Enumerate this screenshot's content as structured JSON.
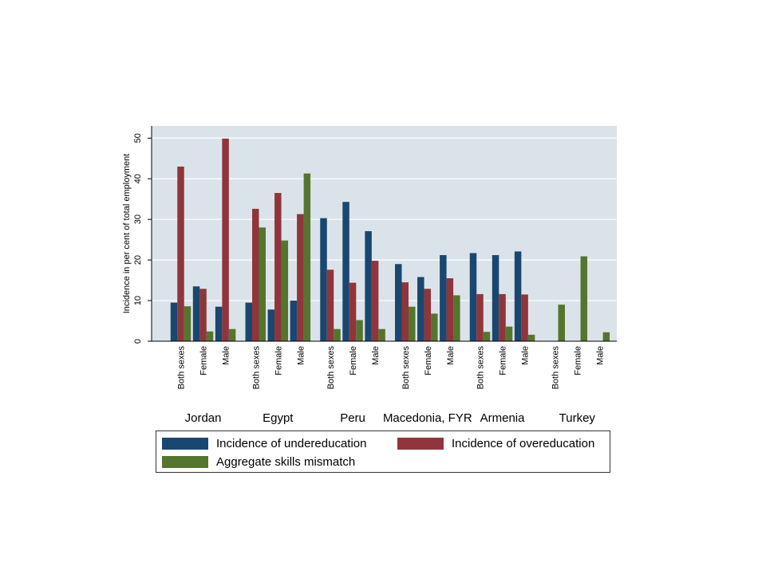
{
  "chart_data": {
    "type": "bar",
    "ylabel": "Incidence in per cent of total employment",
    "ylim": [
      0,
      53
    ],
    "yticks": [
      0,
      10,
      20,
      30,
      40,
      50
    ],
    "grid": true,
    "legend_position": "bottom",
    "groups": [
      {
        "name": "Jordan",
        "categories": [
          "Both sexes",
          "Female",
          "Male"
        ]
      },
      {
        "name": "Egypt",
        "categories": [
          "Both sexes",
          "Female",
          "Male"
        ]
      },
      {
        "name": "Peru",
        "categories": [
          "Both sexes",
          "Female",
          "Male"
        ]
      },
      {
        "name": "Macedonia, FYR",
        "categories": [
          "Both sexes",
          "Female",
          "Male"
        ]
      },
      {
        "name": "Armenia",
        "categories": [
          "Both sexes",
          "Female",
          "Male"
        ]
      },
      {
        "name": "Turkey",
        "categories": [
          "Both sexes",
          "Female",
          "Male"
        ]
      }
    ],
    "series": [
      {
        "name": "Incidence of undereducation",
        "color": "#1a476f",
        "values": [
          9.5,
          13.5,
          8.5,
          9.5,
          7.8,
          10,
          30.3,
          34.3,
          27.1,
          19,
          15.8,
          21.2,
          21.7,
          21.2,
          22.1,
          null,
          null,
          null
        ]
      },
      {
        "name": "Incidence of overeducation",
        "color": "#90353b",
        "values": [
          43,
          12.9,
          49.9,
          32.6,
          36.5,
          31.3,
          17.6,
          14.4,
          19.8,
          14.5,
          12.9,
          15.5,
          11.6,
          11.6,
          11.5,
          null,
          null,
          null
        ]
      },
      {
        "name": "Aggregate skills mismatch",
        "color": "#55752f",
        "values": [
          8.6,
          2.4,
          3,
          28,
          24.8,
          41.3,
          3,
          5.2,
          3,
          8.5,
          6.8,
          11.3,
          2.3,
          3.6,
          1.6,
          9,
          20.9,
          2.2
        ]
      }
    ]
  }
}
